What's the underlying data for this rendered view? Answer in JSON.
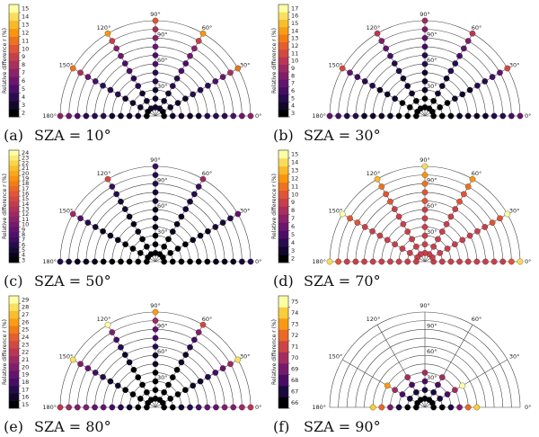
{
  "chart_data": [
    {
      "type": "polar-semicircle",
      "caption_label": "(a)",
      "caption": "SZA = 10°",
      "colorbar_label": "Relative difference r (%)",
      "colorbar_ticks": [
        "2",
        "3",
        "4",
        "5",
        "6",
        "7",
        "8",
        "9",
        "10",
        "11",
        "12",
        "13",
        "14",
        "15"
      ],
      "scale": [
        2,
        15
      ],
      "angle_labels": [
        "0°",
        "30°",
        "60°",
        "90°",
        "120°",
        "150°",
        "180°"
      ],
      "radial_labels": [
        "30°",
        "60°",
        "90°"
      ],
      "rays": [
        {
          "azimuth": 0,
          "values": [
            2,
            3,
            3,
            3,
            3,
            4,
            4,
            4,
            5,
            6,
            7
          ]
        },
        {
          "azimuth": 30,
          "values": [
            2,
            3,
            3,
            3,
            4,
            4,
            4,
            5,
            6,
            8,
            11
          ]
        },
        {
          "azimuth": 60,
          "values": [
            3,
            3,
            3,
            4,
            4,
            5,
            5,
            6,
            7,
            9,
            12
          ]
        },
        {
          "azimuth": 90,
          "values": [
            3,
            3,
            3,
            4,
            4,
            5,
            5,
            6,
            7,
            8,
            10
          ]
        },
        {
          "azimuth": 120,
          "values": [
            3,
            3,
            3,
            4,
            4,
            5,
            5,
            6,
            7,
            9,
            12
          ]
        },
        {
          "azimuth": 150,
          "values": [
            2,
            3,
            3,
            3,
            4,
            4,
            4,
            5,
            6,
            8,
            11
          ]
        },
        {
          "azimuth": 180,
          "values": [
            2,
            3,
            3,
            3,
            3,
            4,
            4,
            4,
            5,
            6,
            7
          ]
        }
      ]
    },
    {
      "type": "polar-semicircle",
      "caption_label": "(b)",
      "caption": "SZA = 30°",
      "colorbar_label": "Relative difference r (%)",
      "colorbar_ticks": [
        "3",
        "4",
        "5",
        "6",
        "7",
        "8",
        "9",
        "10",
        "11",
        "12",
        "13",
        "14",
        "15",
        "16",
        "17"
      ],
      "scale": [
        3,
        17
      ],
      "angle_labels": [
        "0°",
        "30°",
        "60°",
        "90°",
        "120°",
        "150°",
        "180°"
      ],
      "radial_labels": [
        "30°",
        "60°",
        "90°"
      ],
      "rays": [
        {
          "azimuth": 0,
          "values": [
            3,
            3,
            3,
            4,
            4,
            4,
            4,
            5,
            5,
            6,
            7
          ]
        },
        {
          "azimuth": 30,
          "values": [
            3,
            3,
            3,
            4,
            4,
            4,
            5,
            5,
            6,
            7,
            11
          ]
        },
        {
          "azimuth": 60,
          "values": [
            3,
            3,
            4,
            4,
            4,
            5,
            5,
            6,
            7,
            8,
            10
          ]
        },
        {
          "azimuth": 90,
          "values": [
            3,
            3,
            4,
            4,
            4,
            5,
            5,
            6,
            7,
            8,
            9
          ]
        },
        {
          "azimuth": 120,
          "values": [
            3,
            3,
            4,
            4,
            4,
            5,
            5,
            6,
            7,
            8,
            10
          ]
        },
        {
          "azimuth": 150,
          "values": [
            3,
            3,
            3,
            4,
            4,
            4,
            5,
            5,
            6,
            7,
            11
          ]
        },
        {
          "azimuth": 180,
          "values": [
            3,
            3,
            3,
            4,
            4,
            4,
            4,
            5,
            5,
            6,
            7
          ]
        }
      ]
    },
    {
      "type": "polar-semicircle",
      "caption_label": "(c)",
      "caption": "SZA = 50°",
      "colorbar_label": "Relative difference r (%)",
      "colorbar_ticks": [
        "3",
        "4",
        "5",
        "6",
        "7",
        "8",
        "9",
        "10",
        "11",
        "12",
        "13",
        "14",
        "15",
        "16",
        "17",
        "18",
        "19",
        "20",
        "21",
        "22",
        "23",
        "24"
      ],
      "scale": [
        3,
        24
      ],
      "angle_labels": [
        "0°",
        "30°",
        "60°",
        "90°",
        "120°",
        "150°",
        "180°"
      ],
      "radial_labels": [
        "30°",
        "60°",
        "90°"
      ],
      "rays": [
        {
          "azimuth": 0,
          "values": [
            3,
            3,
            3,
            3,
            3,
            3,
            4,
            4,
            4,
            5,
            6
          ]
        },
        {
          "azimuth": 30,
          "values": [
            3,
            3,
            3,
            3,
            4,
            4,
            4,
            5,
            5,
            6,
            9
          ]
        },
        {
          "azimuth": 60,
          "values": [
            3,
            3,
            3,
            4,
            4,
            4,
            5,
            5,
            6,
            7,
            12
          ]
        },
        {
          "azimuth": 90,
          "values": [
            3,
            3,
            3,
            4,
            4,
            4,
            5,
            5,
            6,
            6,
            7
          ]
        },
        {
          "azimuth": 120,
          "values": [
            3,
            3,
            3,
            4,
            4,
            4,
            5,
            5,
            6,
            7,
            15
          ]
        },
        {
          "azimuth": 150,
          "values": [
            3,
            3,
            3,
            3,
            4,
            4,
            4,
            5,
            6,
            8,
            12
          ]
        },
        {
          "azimuth": 180,
          "values": [
            3,
            3,
            3,
            3,
            3,
            3,
            4,
            4,
            4,
            5,
            6
          ]
        }
      ]
    },
    {
      "type": "polar-semicircle",
      "caption_label": "(d)",
      "caption": "SZA = 70°",
      "colorbar_label": "Relative difference r (%)",
      "colorbar_ticks": [
        "2",
        "3",
        "4",
        "5",
        "6",
        "7",
        "8",
        "9",
        "10",
        "11",
        "12",
        "13",
        "14",
        "15"
      ],
      "scale": [
        2,
        15
      ],
      "angle_labels": [
        "0°",
        "30°",
        "60°",
        "90°",
        "120°",
        "150°",
        "180°"
      ],
      "radial_labels": [
        "30°",
        "60°",
        "90°"
      ],
      "rays": [
        {
          "azimuth": 0,
          "values": [
            9,
            9,
            9,
            9,
            9,
            9,
            9,
            9,
            9,
            10,
            14
          ]
        },
        {
          "azimuth": 30,
          "values": [
            9,
            9,
            9,
            9,
            9,
            9,
            9,
            9,
            10,
            10,
            15
          ]
        },
        {
          "azimuth": 60,
          "values": [
            9,
            9,
            9,
            9,
            9,
            9,
            9,
            10,
            10,
            11,
            12
          ]
        },
        {
          "azimuth": 90,
          "values": [
            9,
            9,
            9,
            9,
            9,
            9,
            10,
            10,
            11,
            12,
            14
          ]
        },
        {
          "azimuth": 120,
          "values": [
            9,
            9,
            9,
            9,
            9,
            9,
            9,
            10,
            10,
            11,
            13
          ]
        },
        {
          "azimuth": 150,
          "values": [
            9,
            9,
            9,
            9,
            9,
            9,
            9,
            9,
            10,
            10,
            15
          ]
        },
        {
          "azimuth": 180,
          "values": [
            9,
            9,
            9,
            9,
            9,
            9,
            9,
            9,
            9,
            10,
            14
          ]
        }
      ]
    },
    {
      "type": "polar-semicircle",
      "caption_label": "(e)",
      "caption": "SZA = 80°",
      "colorbar_label": "Relative difference r (%)",
      "colorbar_ticks": [
        "15",
        "16",
        "17",
        "18",
        "19",
        "20",
        "21",
        "22",
        "23",
        "24",
        "25",
        "26",
        "27",
        "28",
        "29"
      ],
      "scale": [
        15,
        29
      ],
      "angle_labels": [
        "0°",
        "30°",
        "60°",
        "90°",
        "120°",
        "150°",
        "180°"
      ],
      "radial_labels": [
        "30°",
        "60°",
        "90°"
      ],
      "rays": [
        {
          "azimuth": 0,
          "values": [
            15,
            15,
            16,
            17,
            18,
            19,
            19,
            20,
            20,
            21,
            22
          ]
        },
        {
          "azimuth": 30,
          "values": [
            15,
            15,
            15,
            15,
            16,
            16,
            17,
            18,
            19,
            21,
            28
          ]
        },
        {
          "azimuth": 60,
          "values": [
            15,
            15,
            15,
            15,
            15,
            16,
            16,
            17,
            18,
            20,
            23
          ]
        },
        {
          "azimuth": 90,
          "values": [
            15,
            15,
            15,
            15,
            16,
            16,
            17,
            18,
            19,
            21,
            26
          ]
        },
        {
          "azimuth": 120,
          "values": [
            15,
            15,
            15,
            15,
            15,
            16,
            16,
            17,
            18,
            20,
            29
          ]
        },
        {
          "azimuth": 150,
          "values": [
            15,
            15,
            15,
            15,
            16,
            16,
            17,
            18,
            19,
            20,
            28
          ]
        },
        {
          "azimuth": 180,
          "values": [
            15,
            15,
            16,
            17,
            18,
            19,
            19,
            20,
            20,
            21,
            22
          ]
        }
      ]
    },
    {
      "type": "polar-semicircle",
      "caption_label": "(f)",
      "caption": "SZA = 90°",
      "colorbar_label": "Relative difference r (%)",
      "colorbar_ticks": [
        "66",
        "67",
        "68",
        "69",
        "70",
        "71",
        "72",
        "73",
        "74",
        "75"
      ],
      "scale": [
        66,
        75
      ],
      "angle_labels": [
        "0°",
        "30°",
        "60°",
        "90°",
        "120°",
        "150°",
        "180°"
      ],
      "radial_labels": [
        "30°",
        "60°",
        "90°"
      ],
      "rays": [
        {
          "azimuth": 0,
          "values": [
            66,
            66,
            67,
            69,
            72,
            74
          ]
        },
        {
          "azimuth": 30,
          "values": [
            66,
            67,
            68,
            70,
            75
          ]
        },
        {
          "azimuth": 60,
          "values": [
            66,
            67,
            68,
            70
          ]
        },
        {
          "azimuth": 90,
          "values": [
            66,
            67,
            68,
            70
          ]
        },
        {
          "azimuth": 120,
          "values": [
            66,
            67,
            68,
            70
          ]
        },
        {
          "azimuth": 150,
          "values": [
            66,
            67,
            68,
            70,
            73
          ]
        },
        {
          "azimuth": 180,
          "values": [
            66,
            66,
            67,
            69,
            72,
            74
          ]
        }
      ]
    }
  ]
}
